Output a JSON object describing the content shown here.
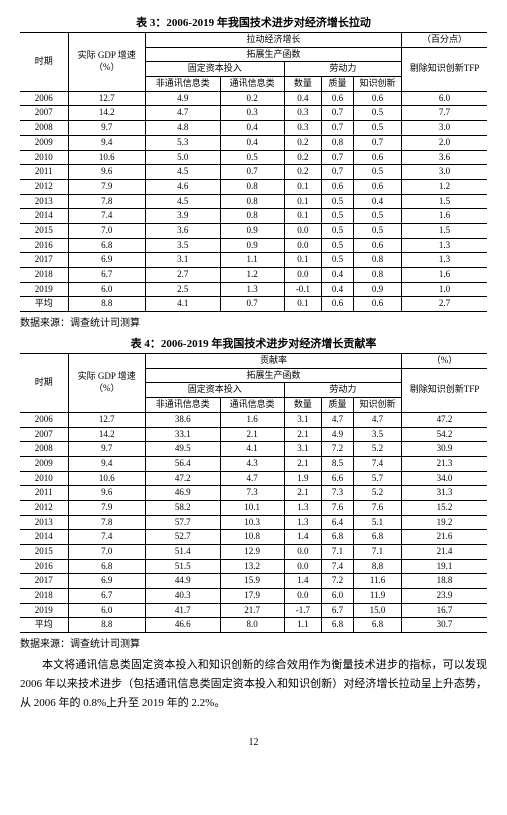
{
  "table3": {
    "title": "表 3：2006-2019 年我国技术进步对经济增长拉动",
    "headers": {
      "period": "时期",
      "gdp": "实际 GDP 增速（%）",
      "pull_growth": "拉动经济增长",
      "unit": "（百分点）",
      "expand_fn": "拓展生产函数",
      "fixed_cap": "固定资本投入",
      "labor": "劳动力",
      "tfp": "剔除知识创新TFP",
      "nontel": "非通讯信息类",
      "tel": "通讯信息类",
      "qty": "数量",
      "qual": "质量",
      "know": "知识创新"
    },
    "source": "数据来源：调查统计司测算",
    "rows": [
      {
        "year": "2006",
        "gdp": "12.7",
        "nontel": "4.9",
        "tel": "0.2",
        "qty": "0.4",
        "qual": "0.6",
        "know": "0.6",
        "tfp": "6.0"
      },
      {
        "year": "2007",
        "gdp": "14.2",
        "nontel": "4.7",
        "tel": "0.3",
        "qty": "0.3",
        "qual": "0.7",
        "know": "0.5",
        "tfp": "7.7"
      },
      {
        "year": "2008",
        "gdp": "9.7",
        "nontel": "4.8",
        "tel": "0.4",
        "qty": "0.3",
        "qual": "0.7",
        "know": "0.5",
        "tfp": "3.0"
      },
      {
        "year": "2009",
        "gdp": "9.4",
        "nontel": "5.3",
        "tel": "0.4",
        "qty": "0.2",
        "qual": "0.8",
        "know": "0.7",
        "tfp": "2.0"
      },
      {
        "year": "2010",
        "gdp": "10.6",
        "nontel": "5.0",
        "tel": "0.5",
        "qty": "0.2",
        "qual": "0.7",
        "know": "0.6",
        "tfp": "3.6"
      },
      {
        "year": "2011",
        "gdp": "9.6",
        "nontel": "4.5",
        "tel": "0.7",
        "qty": "0.2",
        "qual": "0.7",
        "know": "0.5",
        "tfp": "3.0"
      },
      {
        "year": "2012",
        "gdp": "7.9",
        "nontel": "4.6",
        "tel": "0.8",
        "qty": "0.1",
        "qual": "0.6",
        "know": "0.6",
        "tfp": "1.2"
      },
      {
        "year": "2013",
        "gdp": "7.8",
        "nontel": "4.5",
        "tel": "0.8",
        "qty": "0.1",
        "qual": "0.5",
        "know": "0.4",
        "tfp": "1.5"
      },
      {
        "year": "2014",
        "gdp": "7.4",
        "nontel": "3.9",
        "tel": "0.8",
        "qty": "0.1",
        "qual": "0.5",
        "know": "0.5",
        "tfp": "1.6"
      },
      {
        "year": "2015",
        "gdp": "7.0",
        "nontel": "3.6",
        "tel": "0.9",
        "qty": "0.0",
        "qual": "0.5",
        "know": "0.5",
        "tfp": "1.5"
      },
      {
        "year": "2016",
        "gdp": "6.8",
        "nontel": "3.5",
        "tel": "0.9",
        "qty": "0.0",
        "qual": "0.5",
        "know": "0.6",
        "tfp": "1.3"
      },
      {
        "year": "2017",
        "gdp": "6.9",
        "nontel": "3.1",
        "tel": "1.1",
        "qty": "0.1",
        "qual": "0.5",
        "know": "0.8",
        "tfp": "1.3"
      },
      {
        "year": "2018",
        "gdp": "6.7",
        "nontel": "2.7",
        "tel": "1.2",
        "qty": "0.0",
        "qual": "0.4",
        "know": "0.8",
        "tfp": "1.6"
      },
      {
        "year": "2019",
        "gdp": "6.0",
        "nontel": "2.5",
        "tel": "1.3",
        "qty": "-0.1",
        "qual": "0.4",
        "know": "0.9",
        "tfp": "1.0"
      },
      {
        "year": "平均",
        "gdp": "8.8",
        "nontel": "4.1",
        "tel": "0.7",
        "qty": "0.1",
        "qual": "0.6",
        "know": "0.6",
        "tfp": "2.7"
      }
    ]
  },
  "table4": {
    "title": "表 4：2006-2019 年我国技术进步对经济增长贡献率",
    "headers": {
      "period": "时期",
      "gdp": "实际 GDP 增速（%）",
      "contrib": "贡献率",
      "unit": "（%）",
      "expand_fn": "拓展生产函数",
      "fixed_cap": "固定资本投入",
      "labor": "劳动力",
      "tfp": "剔除知识创新TFP",
      "nontel": "非通讯信息类",
      "tel": "通讯信息类",
      "qty": "数量",
      "qual": "质量",
      "know": "知识创新"
    },
    "source": "数据来源：调查统计司测算",
    "rows": [
      {
        "year": "2006",
        "gdp": "12.7",
        "nontel": "38.6",
        "tel": "1.6",
        "qty": "3.1",
        "qual": "4.7",
        "know": "4.7",
        "tfp": "47.2"
      },
      {
        "year": "2007",
        "gdp": "14.2",
        "nontel": "33.1",
        "tel": "2.1",
        "qty": "2.1",
        "qual": "4.9",
        "know": "3.5",
        "tfp": "54.2"
      },
      {
        "year": "2008",
        "gdp": "9.7",
        "nontel": "49.5",
        "tel": "4.1",
        "qty": "3.1",
        "qual": "7.2",
        "know": "5.2",
        "tfp": "30.9"
      },
      {
        "year": "2009",
        "gdp": "9.4",
        "nontel": "56.4",
        "tel": "4.3",
        "qty": "2.1",
        "qual": "8.5",
        "know": "7.4",
        "tfp": "21.3"
      },
      {
        "year": "2010",
        "gdp": "10.6",
        "nontel": "47.2",
        "tel": "4.7",
        "qty": "1.9",
        "qual": "6.6",
        "know": "5.7",
        "tfp": "34.0"
      },
      {
        "year": "2011",
        "gdp": "9.6",
        "nontel": "46.9",
        "tel": "7.3",
        "qty": "2.1",
        "qual": "7.3",
        "know": "5.2",
        "tfp": "31.3"
      },
      {
        "year": "2012",
        "gdp": "7.9",
        "nontel": "58.2",
        "tel": "10.1",
        "qty": "1.3",
        "qual": "7.6",
        "know": "7.6",
        "tfp": "15.2"
      },
      {
        "year": "2013",
        "gdp": "7.8",
        "nontel": "57.7",
        "tel": "10.3",
        "qty": "1.3",
        "qual": "6.4",
        "know": "5.1",
        "tfp": "19.2"
      },
      {
        "year": "2014",
        "gdp": "7.4",
        "nontel": "52.7",
        "tel": "10.8",
        "qty": "1.4",
        "qual": "6.8",
        "know": "6.8",
        "tfp": "21.6"
      },
      {
        "year": "2015",
        "gdp": "7.0",
        "nontel": "51.4",
        "tel": "12.9",
        "qty": "0.0",
        "qual": "7.1",
        "know": "7.1",
        "tfp": "21.4"
      },
      {
        "year": "2016",
        "gdp": "6.8",
        "nontel": "51.5",
        "tel": "13.2",
        "qty": "0.0",
        "qual": "7.4",
        "know": "8.8",
        "tfp": "19.1"
      },
      {
        "year": "2017",
        "gdp": "6.9",
        "nontel": "44.9",
        "tel": "15.9",
        "qty": "1.4",
        "qual": "7.2",
        "know": "11.6",
        "tfp": "18.8"
      },
      {
        "year": "2018",
        "gdp": "6.7",
        "nontel": "40.3",
        "tel": "17.9",
        "qty": "0.0",
        "qual": "6.0",
        "know": "11.9",
        "tfp": "23.9"
      },
      {
        "year": "2019",
        "gdp": "6.0",
        "nontel": "41.7",
        "tel": "21.7",
        "qty": "-1.7",
        "qual": "6.7",
        "know": "15.0",
        "tfp": "16.7"
      },
      {
        "year": "平均",
        "gdp": "8.8",
        "nontel": "46.6",
        "tel": "8.0",
        "qty": "1.1",
        "qual": "6.8",
        "know": "6.8",
        "tfp": "30.7"
      }
    ]
  },
  "paragraph": "本文将通讯信息类固定资本投入和知识创新的综合效用作为衡量技术进步的指标，可以发现 2006 年以来技术进步（包括通讯信息类固定资本投入和知识创新）对经济增长拉动呈上升态势，从 2006 年的 0.8%上升至 2019 年的 2.2%。",
  "page_number": "12"
}
